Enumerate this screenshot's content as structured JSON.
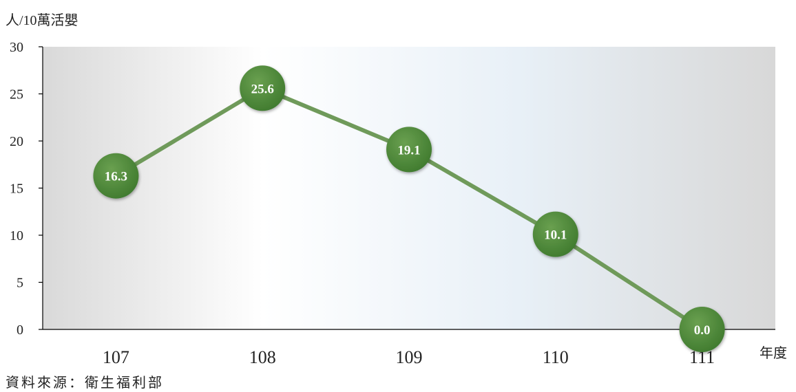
{
  "chart_data": {
    "type": "line",
    "ylabel": "人/10萬活嬰",
    "xlabel": "年度",
    "categories": [
      "107",
      "108",
      "109",
      "110",
      "111"
    ],
    "values": [
      16.3,
      25.6,
      19.1,
      10.1,
      0.0
    ],
    "data_labels": [
      "16.3",
      "25.6",
      "19.1",
      "10.1",
      "0.0"
    ],
    "ylim": [
      0,
      30
    ],
    "yticks": [
      "0",
      "5",
      "10",
      "15",
      "20",
      "25",
      "30"
    ],
    "grid": false,
    "legend": "none",
    "line_color": "#6f9a5a",
    "marker_color": "#4e8a3a"
  },
  "source": "資料來源：衛生福利部"
}
